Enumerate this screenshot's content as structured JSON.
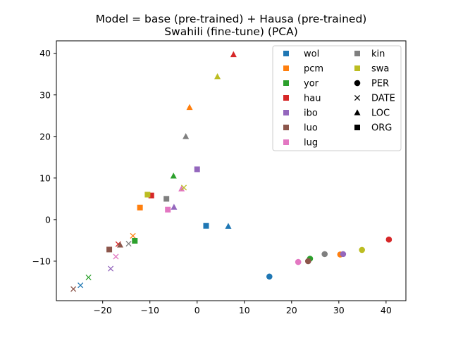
{
  "chart_data": {
    "type": "scatter",
    "title": [
      "Model = base (pre-trained) + Hausa (pre-trained)",
      "Swahili (fine-tune) (PCA)"
    ],
    "xlabel": "",
    "ylabel": "",
    "xlim": [
      -29.8,
      44.2
    ],
    "ylim": [
      -19.5,
      43.0
    ],
    "xticks": [
      -20,
      -10,
      0,
      10,
      20,
      30,
      40
    ],
    "xtick_labels": [
      "−20",
      "−10",
      "0",
      "10",
      "20",
      "30",
      "40"
    ],
    "yticks": [
      -10,
      0,
      10,
      20,
      30,
      40
    ],
    "ytick_labels": [
      "−10",
      "0",
      "10",
      "20",
      "30",
      "40"
    ],
    "grid": false,
    "legend_position": "top-right",
    "languages": [
      {
        "name": "wol",
        "color": "#1f77b4"
      },
      {
        "name": "pcm",
        "color": "#ff7f0e"
      },
      {
        "name": "yor",
        "color": "#2ca02c"
      },
      {
        "name": "hau",
        "color": "#d62728"
      },
      {
        "name": "ibo",
        "color": "#9467bd"
      },
      {
        "name": "luo",
        "color": "#8c564b"
      },
      {
        "name": "lug",
        "color": "#e377c2"
      },
      {
        "name": "kin",
        "color": "#7f7f7f"
      },
      {
        "name": "swa",
        "color": "#bcbd22"
      }
    ],
    "entity_types": [
      {
        "name": "PER",
        "marker": "circle"
      },
      {
        "name": "DATE",
        "marker": "x"
      },
      {
        "name": "LOC",
        "marker": "triangle"
      },
      {
        "name": "ORG",
        "marker": "square"
      }
    ],
    "points": [
      {
        "lang": "wol",
        "type": "PER",
        "x": 15.3,
        "y": -13.7
      },
      {
        "lang": "wol",
        "type": "DATE",
        "x": -24.7,
        "y": -15.8
      },
      {
        "lang": "wol",
        "type": "LOC",
        "x": 6.6,
        "y": -1.6
      },
      {
        "lang": "wol",
        "type": "ORG",
        "x": 1.9,
        "y": -1.5
      },
      {
        "lang": "pcm",
        "type": "PER",
        "x": 30.3,
        "y": -8.4
      },
      {
        "lang": "pcm",
        "type": "DATE",
        "x": -13.6,
        "y": -3.9
      },
      {
        "lang": "pcm",
        "type": "LOC",
        "x": -1.6,
        "y": 27.0
      },
      {
        "lang": "pcm",
        "type": "ORG",
        "x": -12.1,
        "y": 2.9
      },
      {
        "lang": "yor",
        "type": "PER",
        "x": 23.9,
        "y": -9.4
      },
      {
        "lang": "yor",
        "type": "DATE",
        "x": -23.0,
        "y": -13.9
      },
      {
        "lang": "yor",
        "type": "LOC",
        "x": -5.0,
        "y": 10.5
      },
      {
        "lang": "yor",
        "type": "ORG",
        "x": -13.2,
        "y": -5.1
      },
      {
        "lang": "hau",
        "type": "PER",
        "x": 40.6,
        "y": -4.8
      },
      {
        "lang": "hau",
        "type": "DATE",
        "x": -16.7,
        "y": -5.9
      },
      {
        "lang": "hau",
        "type": "LOC",
        "x": 7.7,
        "y": 39.7
      },
      {
        "lang": "hau",
        "type": "ORG",
        "x": -9.7,
        "y": 5.8
      },
      {
        "lang": "ibo",
        "type": "PER",
        "x": 30.9,
        "y": -8.3
      },
      {
        "lang": "ibo",
        "type": "DATE",
        "x": -18.3,
        "y": -11.8
      },
      {
        "lang": "ibo",
        "type": "LOC",
        "x": -4.9,
        "y": 3.0
      },
      {
        "lang": "ibo",
        "type": "ORG",
        "x": 0.0,
        "y": 12.1
      },
      {
        "lang": "luo",
        "type": "PER",
        "x": 23.5,
        "y": -10.0
      },
      {
        "lang": "luo",
        "type": "DATE",
        "x": -26.2,
        "y": -16.7
      },
      {
        "lang": "luo",
        "type": "LOC",
        "x": -16.3,
        "y": -6.1
      },
      {
        "lang": "luo",
        "type": "ORG",
        "x": -18.6,
        "y": -7.2
      },
      {
        "lang": "lug",
        "type": "PER",
        "x": 21.4,
        "y": -10.2
      },
      {
        "lang": "lug",
        "type": "DATE",
        "x": -17.2,
        "y": -8.9
      },
      {
        "lang": "lug",
        "type": "LOC",
        "x": -3.3,
        "y": 7.4
      },
      {
        "lang": "lug",
        "type": "ORG",
        "x": -6.2,
        "y": 2.4
      },
      {
        "lang": "kin",
        "type": "PER",
        "x": 27.0,
        "y": -8.3
      },
      {
        "lang": "kin",
        "type": "DATE",
        "x": -14.5,
        "y": -5.8
      },
      {
        "lang": "kin",
        "type": "LOC",
        "x": -2.4,
        "y": 20.0
      },
      {
        "lang": "kin",
        "type": "ORG",
        "x": -6.5,
        "y": 5.0
      },
      {
        "lang": "swa",
        "type": "PER",
        "x": 34.9,
        "y": -7.3
      },
      {
        "lang": "swa",
        "type": "DATE",
        "x": -2.8,
        "y": 7.7
      },
      {
        "lang": "swa",
        "type": "LOC",
        "x": 4.3,
        "y": 34.4
      },
      {
        "lang": "swa",
        "type": "ORG",
        "x": -10.5,
        "y": 6.0
      }
    ]
  }
}
